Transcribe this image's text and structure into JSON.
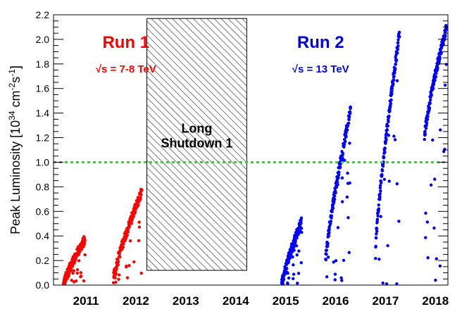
{
  "chart_data": {
    "type": "scatter",
    "ylabel": "Peak Luminosity [10^34 cm^-2 s^-1]",
    "ylim": [
      0,
      2.2
    ],
    "xlim": [
      2010.85,
      2018.75
    ],
    "y_ticks": [
      "0.0",
      "0.2",
      "0.4",
      "0.6",
      "0.8",
      "1.0",
      "1.2",
      "1.4",
      "1.6",
      "1.8",
      "2.0",
      "2.2"
    ],
    "x_ticks": [
      "2011",
      "2012",
      "2013",
      "2014",
      "2015",
      "2016",
      "2017",
      "2018"
    ],
    "reference_line": {
      "y": 1.0,
      "color": "#00dd00",
      "style": "dashed"
    },
    "shaded_region": {
      "label_line1": "Long",
      "label_line2": "Shutdown 1",
      "x_from": 2012.72,
      "x_to": 2014.72,
      "y_from": 0.12,
      "y_to": 2.17
    },
    "annotations": {
      "run1_title": "Run 1",
      "run1_energy_sqrt": "√s",
      "run1_energy_rest": " = 7-8 TeV",
      "run2_title": "Run 2",
      "run2_energy_sqrt": "√s",
      "run2_energy_rest": " = 13 TeV"
    },
    "series": [
      {
        "color": "#ff0000",
        "segments": [
          {
            "x0": 2011.05,
            "x1": 2011.48,
            "y0": 0.0,
            "y1": 0.37
          },
          {
            "x0": 2012.05,
            "x1": 2012.62,
            "y0": 0.05,
            "y1": 0.76
          }
        ]
      },
      {
        "color": "#0000ff",
        "segments": [
          {
            "x0": 2015.42,
            "x1": 2015.82,
            "y0": 0.0,
            "y1": 0.52
          },
          {
            "x0": 2016.3,
            "x1": 2016.8,
            "y0": 0.2,
            "y1": 1.42
          },
          {
            "x0": 2017.3,
            "x1": 2017.78,
            "y0": 0.3,
            "y1": 2.05
          },
          {
            "x0": 2018.28,
            "x1": 2018.72,
            "y0": 1.2,
            "y1": 2.1
          }
        ]
      }
    ]
  }
}
